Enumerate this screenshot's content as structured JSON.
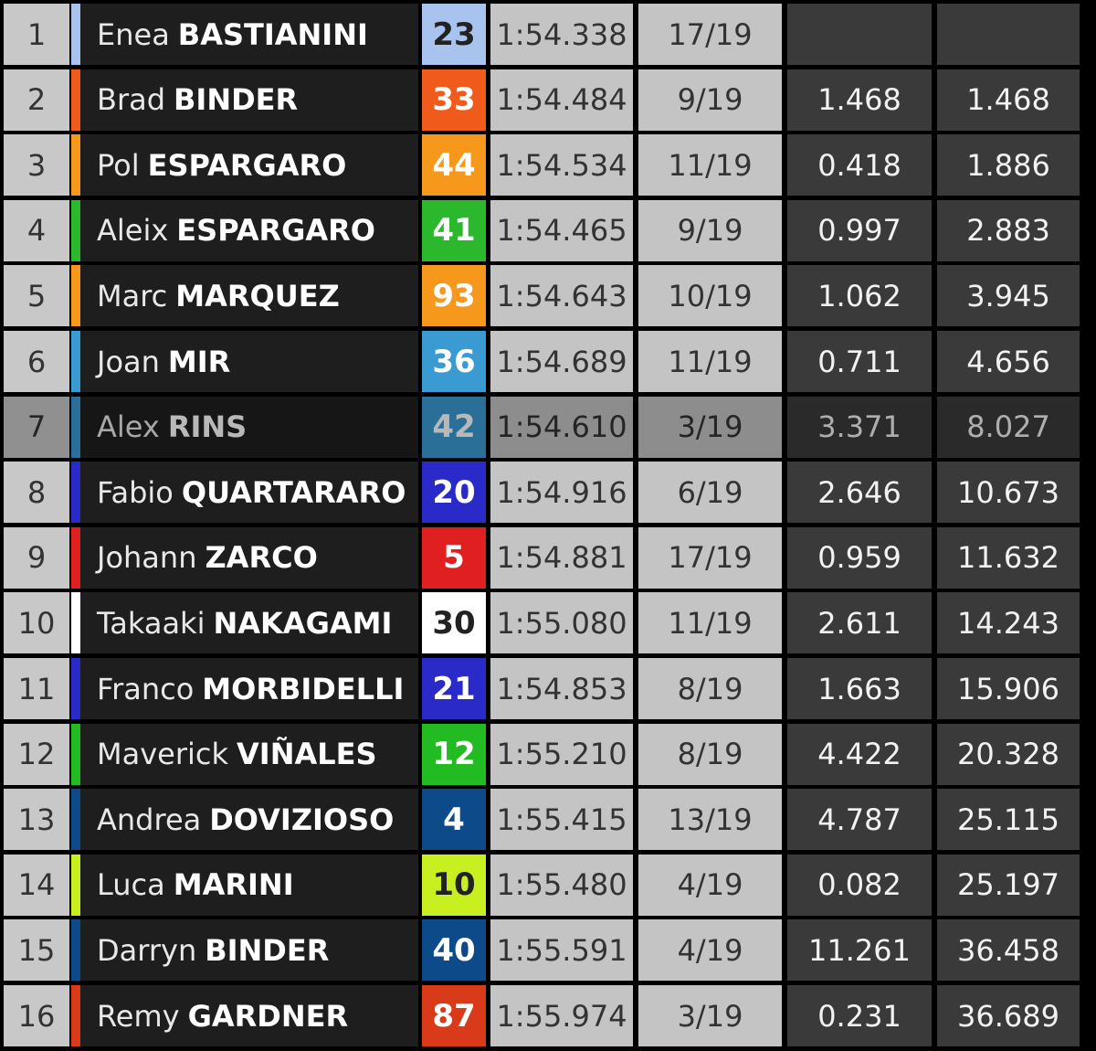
{
  "rows": [
    {
      "pos": "1",
      "first": "Enea",
      "last": "BASTIANINI",
      "number": "23",
      "color": "#a9c3ef",
      "time": "1:54.338",
      "lap": "17/19"
    },
    {
      "pos": "2",
      "first": "Brad",
      "last": "BINDER",
      "number": "33",
      "color": "#f05a1a",
      "time": "1:54.484",
      "lap": "9/19",
      "gap": "1.468",
      "total": "1.468"
    },
    {
      "pos": "3",
      "first": "Pol",
      "last": "ESPARGARO",
      "number": "44",
      "color": "#f5981c",
      "time": "1:54.534",
      "lap": "11/19",
      "gap": "0.418",
      "total": "1.886"
    },
    {
      "pos": "4",
      "first": "Aleix",
      "last": "ESPARGARO",
      "number": "41",
      "color": "#2cb82c",
      "time": "1:54.465",
      "lap": "9/19",
      "gap": "0.997",
      "total": "2.883"
    },
    {
      "pos": "5",
      "first": "Marc",
      "last": "MARQUEZ",
      "number": "93",
      "color": "#f5981c",
      "time": "1:54.643",
      "lap": "10/19",
      "gap": "1.062",
      "total": "3.945"
    },
    {
      "pos": "6",
      "first": "Joan",
      "last": "MIR",
      "number": "36",
      "color": "#3a9ad2",
      "time": "1:54.689",
      "lap": "11/19",
      "gap": "0.711",
      "total": "4.656"
    },
    {
      "pos": "7",
      "first": "Alex",
      "last": "RINS",
      "number": "42",
      "color": "#3a9ad2",
      "time": "1:54.610",
      "lap": "3/19",
      "gap": "3.371",
      "total": "8.027"
    },
    {
      "pos": "8",
      "first": "Fabio",
      "last": "QUARTARARO",
      "number": "20",
      "color": "#2a2ac8",
      "time": "1:54.916",
      "lap": "6/19",
      "gap": "2.646",
      "total": "10.673"
    },
    {
      "pos": "9",
      "first": "Johann",
      "last": "ZARCO",
      "number": "5",
      "color": "#e02020",
      "time": "1:54.881",
      "lap": "17/19",
      "gap": "0.959",
      "total": "11.632"
    },
    {
      "pos": "10",
      "first": "Takaaki",
      "last": "NAKAGAMI",
      "number": "30",
      "color": "#ffffff",
      "time": "1:55.080",
      "lap": "11/19",
      "gap": "2.611",
      "total": "14.243"
    },
    {
      "pos": "11",
      "first": "Franco",
      "last": "MORBIDELLI",
      "number": "21",
      "color": "#2a2ac8",
      "time": "1:54.853",
      "lap": "8/19",
      "gap": "1.663",
      "total": "15.906"
    },
    {
      "pos": "12",
      "first": "Maverick",
      "last": "VIÑALES",
      "number": "12",
      "color": "#22bb22",
      "time": "1:55.210",
      "lap": "8/19",
      "gap": "4.422",
      "total": "20.328"
    },
    {
      "pos": "13",
      "first": "Andrea",
      "last": "DOVIZIOSO",
      "number": "4",
      "color": "#0c4a8a",
      "time": "1:55.415",
      "lap": "13/19",
      "gap": "4.787",
      "total": "25.115"
    },
    {
      "pos": "14",
      "first": "Luca",
      "last": "MARINI",
      "number": "10",
      "color": "#c8f020",
      "time": "1:55.480",
      "lap": "4/19",
      "gap": "0.082",
      "total": "25.197"
    },
    {
      "pos": "15",
      "first": "Darryn",
      "last": "BINDER",
      "number": "40",
      "color": "#0c4a8a",
      "time": "1:55.591",
      "lap": "4/19",
      "gap": "11.261",
      "total": "36.458"
    },
    {
      "pos": "16",
      "first": "Remy",
      "last": "GARDNER",
      "number": "87",
      "color": "#d83a1a",
      "time": "1:55.974",
      "lap": "3/19",
      "gap": "0.231",
      "total": "36.689"
    }
  ]
}
